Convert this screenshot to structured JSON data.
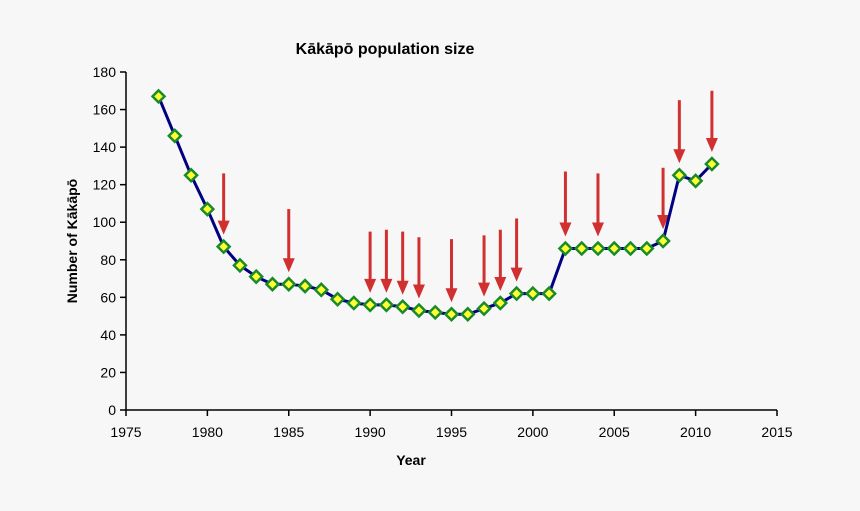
{
  "chart_data": {
    "type": "line",
    "title": "Kākāpō population size",
    "xlabel": "Year",
    "ylabel": "Number of Kākāpō",
    "xlim": [
      1975,
      2015
    ],
    "ylim": [
      0,
      180
    ],
    "xticks": [
      1975,
      1980,
      1985,
      1990,
      1995,
      2000,
      2005,
      2010,
      2015
    ],
    "yticks": [
      0,
      20,
      40,
      60,
      80,
      100,
      120,
      140,
      160,
      180
    ],
    "grid": false,
    "legend": "none",
    "x": [
      1977,
      1978,
      1979,
      1980,
      1981,
      1982,
      1983,
      1984,
      1985,
      1986,
      1987,
      1988,
      1989,
      1990,
      1991,
      1992,
      1993,
      1994,
      1995,
      1996,
      1997,
      1998,
      1999,
      2000,
      2001,
      2002,
      2003,
      2004,
      2005,
      2006,
      2007,
      2008,
      2009,
      2010,
      2011
    ],
    "y": [
      167,
      146,
      125,
      107,
      87,
      77,
      71,
      67,
      67,
      66,
      64,
      59,
      57,
      56,
      56,
      55,
      53,
      52,
      51,
      51,
      54,
      57,
      62,
      62,
      62,
      86,
      86,
      86,
      86,
      86,
      86,
      90,
      125,
      122,
      131
    ],
    "arrows": [
      {
        "year": 1981,
        "from": 126
      },
      {
        "year": 1985,
        "from": 107
      },
      {
        "year": 1990,
        "from": 95
      },
      {
        "year": 1991,
        "from": 96
      },
      {
        "year": 1992,
        "from": 95
      },
      {
        "year": 1993,
        "from": 92
      },
      {
        "year": 1995,
        "from": 91
      },
      {
        "year": 1997,
        "from": 93
      },
      {
        "year": 1998,
        "from": 96
      },
      {
        "year": 1999,
        "from": 102
      },
      {
        "year": 2002,
        "from": 127
      },
      {
        "year": 2004,
        "from": 126
      },
      {
        "year": 2008,
        "from": 129
      },
      {
        "year": 2009,
        "from": 165
      },
      {
        "year": 2011,
        "from": 170
      }
    ],
    "colors": {
      "line": "#000080",
      "marker_fill": "#ffff33",
      "marker_edge": "#1a8a2a",
      "arrow": "#d03030"
    }
  }
}
